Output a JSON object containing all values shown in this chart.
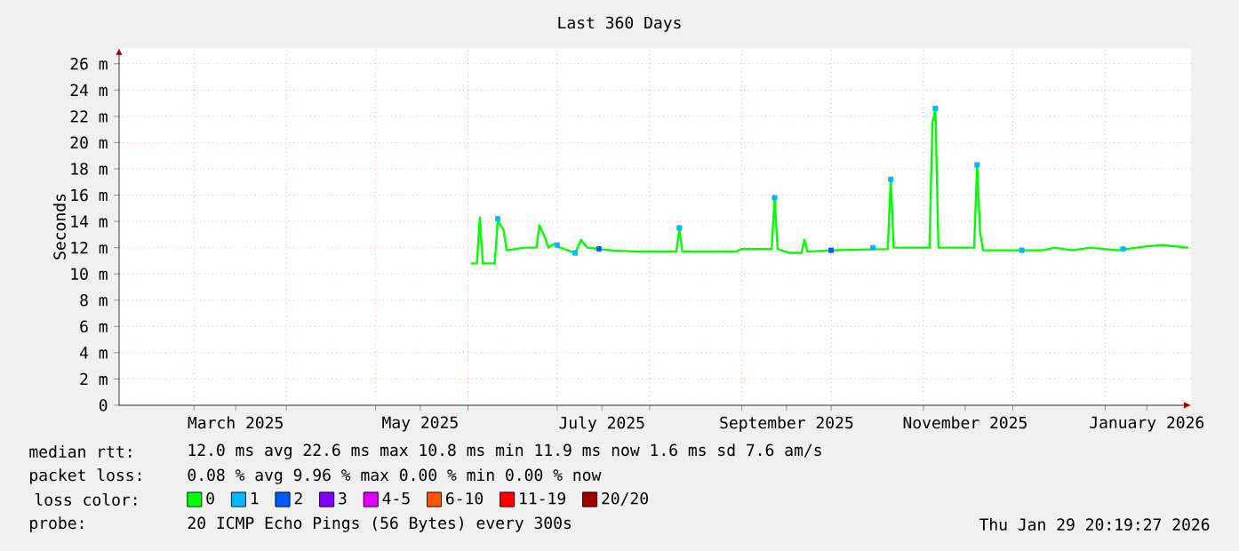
{
  "chart_data": {
    "type": "line",
    "title": "Last 360 Days",
    "ylabel": "Seconds",
    "legend_title": "loss color:",
    "legend": "bottom",
    "grid": true,
    "xlim": [
      "2025-02-03T20:19",
      "2026-01-29T20:19"
    ],
    "xticks": [
      {
        "value": "2025-03-01",
        "label": null
      },
      {
        "value": "2025-03-15",
        "label": "March 2025"
      },
      {
        "value": "2025-04-01",
        "label": null
      },
      {
        "value": "2025-05-01",
        "label": null
      },
      {
        "value": "2025-05-16",
        "label": "May 2025"
      },
      {
        "value": "2025-06-01",
        "label": null
      },
      {
        "value": "2025-07-01",
        "label": null
      },
      {
        "value": "2025-07-16",
        "label": "July 2025"
      },
      {
        "value": "2025-08-01",
        "label": null
      },
      {
        "value": "2025-09-01",
        "label": null
      },
      {
        "value": "2025-09-16",
        "label": "September 2025"
      },
      {
        "value": "2025-10-01",
        "label": null
      },
      {
        "value": "2025-11-01",
        "label": null
      },
      {
        "value": "2025-11-15",
        "label": "November 2025"
      },
      {
        "value": "2025-12-01",
        "label": null
      },
      {
        "value": "2026-01-01",
        "label": null
      },
      {
        "value": "2026-01-15",
        "label": "January 2026"
      }
    ],
    "ylim": [
      0,
      27.2
    ],
    "yticks": [
      0,
      {
        "value": 2,
        "label": "2 m"
      },
      {
        "value": 4,
        "label": "4 m"
      },
      {
        "value": 6,
        "label": "6 m"
      },
      {
        "value": 8,
        "label": "8 m"
      },
      {
        "value": 10,
        "label": "10 m"
      },
      {
        "value": 12,
        "label": "12 m"
      },
      {
        "value": 14,
        "label": "14 m"
      },
      {
        "value": 16,
        "label": "16 m"
      },
      {
        "value": 18,
        "label": "18 m"
      },
      {
        "value": 20,
        "label": "20 m"
      },
      {
        "value": 22,
        "label": "22 m"
      },
      {
        "value": 24,
        "label": "24 m"
      },
      {
        "value": 26,
        "label": "26 m"
      }
    ],
    "series": [
      {
        "name": "0",
        "color": "#00ff00",
        "x": [
          "2025-06-02",
          "2025-06-04",
          "2025-06-05",
          "2025-06-06",
          "2025-06-10",
          "2025-06-11",
          "2025-06-13",
          "2025-06-14",
          "2025-06-20",
          "2025-06-24",
          "2025-06-25",
          "2025-06-27",
          "2025-06-28",
          "2025-06-30",
          "2025-07-02",
          "2025-07-07",
          "2025-07-09",
          "2025-07-11",
          "2025-07-19",
          "2025-07-28",
          "2025-08-10",
          "2025-08-11",
          "2025-08-12",
          "2025-08-30",
          "2025-09-01",
          "2025-09-11",
          "2025-09-12",
          "2025-09-13",
          "2025-09-17",
          "2025-09-21",
          "2025-09-22",
          "2025-09-23",
          "2025-10-01",
          "2025-10-20",
          "2025-10-21",
          "2025-10-22",
          "2025-11-03",
          "2025-11-04",
          "2025-11-05",
          "2025-11-06",
          "2025-11-18",
          "2025-11-19",
          "2025-11-20",
          "2025-11-21",
          "2025-12-11",
          "2025-12-15",
          "2025-12-21",
          "2025-12-27",
          "2026-01-05",
          "2026-01-15",
          "2026-01-20",
          "2026-01-29"
        ],
        "values": [
          10.8,
          10.8,
          14.3,
          10.8,
          10.8,
          14.1,
          13.3,
          11.8,
          12.0,
          12.0,
          13.7,
          12.7,
          12.0,
          12.3,
          12.0,
          11.6,
          12.6,
          12.0,
          11.8,
          11.7,
          11.7,
          13.4,
          11.7,
          11.7,
          11.9,
          11.9,
          15.8,
          11.9,
          11.6,
          11.6,
          12.6,
          11.7,
          11.8,
          11.9,
          17.2,
          12.0,
          12.0,
          21.5,
          22.6,
          12.0,
          12.0,
          18.3,
          13.2,
          11.8,
          11.8,
          12.0,
          11.8,
          12.0,
          11.8,
          12.1,
          12.2,
          12.0
        ]
      },
      {
        "name": "1",
        "color": "#00b8ff",
        "type": "scatter",
        "x": [
          "2025-06-11",
          "2025-07-01",
          "2025-07-07",
          "2025-08-11",
          "2025-09-12",
          "2025-10-15",
          "2025-10-21",
          "2025-11-05",
          "2025-11-19",
          "2025-12-04",
          "2026-01-07"
        ],
        "values": [
          14.2,
          12.2,
          11.6,
          13.5,
          15.8,
          12.0,
          17.2,
          22.6,
          18.3,
          11.8,
          11.9
        ]
      },
      {
        "name": "2",
        "color": "#0059ff",
        "type": "scatter",
        "x": [
          "2025-07-15",
          "2025-10-01"
        ],
        "values": [
          11.9,
          11.8
        ]
      },
      {
        "name": "3",
        "color": "#7e00ff",
        "type": "scatter"
      },
      {
        "name": "4-5",
        "color": "#dd00ff",
        "type": "scatter"
      },
      {
        "name": "6-10",
        "color": "#ff5500",
        "type": "scatter"
      },
      {
        "name": "11-19",
        "color": "#ff0000",
        "type": "scatter"
      },
      {
        "name": "20/20",
        "color": "#a10000",
        "type": "scatter"
      }
    ],
    "annotations": [
      "median rtt:",
      "12.0 ms avg  22.6 ms max  10.8 ms min  11.9 ms now  1.6 ms sd  7.6   am/s",
      "packet loss:",
      "0.08 % avg  9.96 % max  0.00 % min  0.00 % now",
      "probe:",
      "20 ICMP Echo Pings (56 Bytes) every 300s",
      "Thu Jan 29 20:19:27 2026"
    ]
  }
}
